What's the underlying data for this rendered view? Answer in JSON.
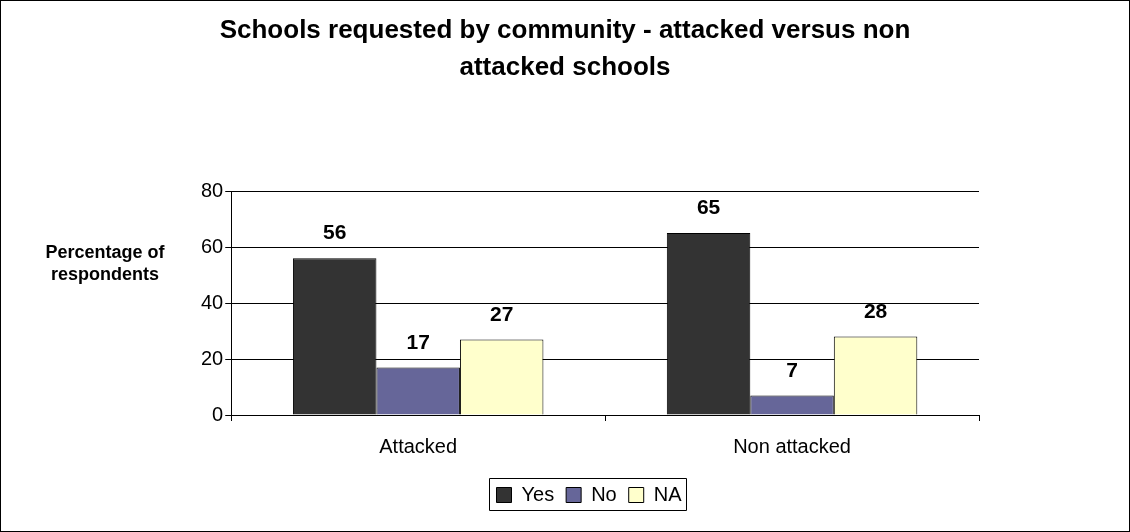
{
  "chart_data": {
    "type": "bar",
    "title": "Schools requested by community - attacked versus non attacked schools",
    "ylabel": "Percentage of respondents",
    "categories": [
      "Attacked",
      "Non attacked"
    ],
    "series": [
      {
        "name": "Yes",
        "color": "#333333",
        "values": [
          56,
          65
        ]
      },
      {
        "name": "No",
        "color": "#666699",
        "values": [
          17,
          7
        ]
      },
      {
        "name": "NA",
        "color": "#ffffcc",
        "values": [
          27,
          28
        ]
      }
    ],
    "ylim": [
      0,
      80
    ],
    "yticks": [
      0,
      20,
      40,
      60,
      80
    ],
    "grid": "y",
    "legend": "bottom",
    "data_labels": true
  }
}
